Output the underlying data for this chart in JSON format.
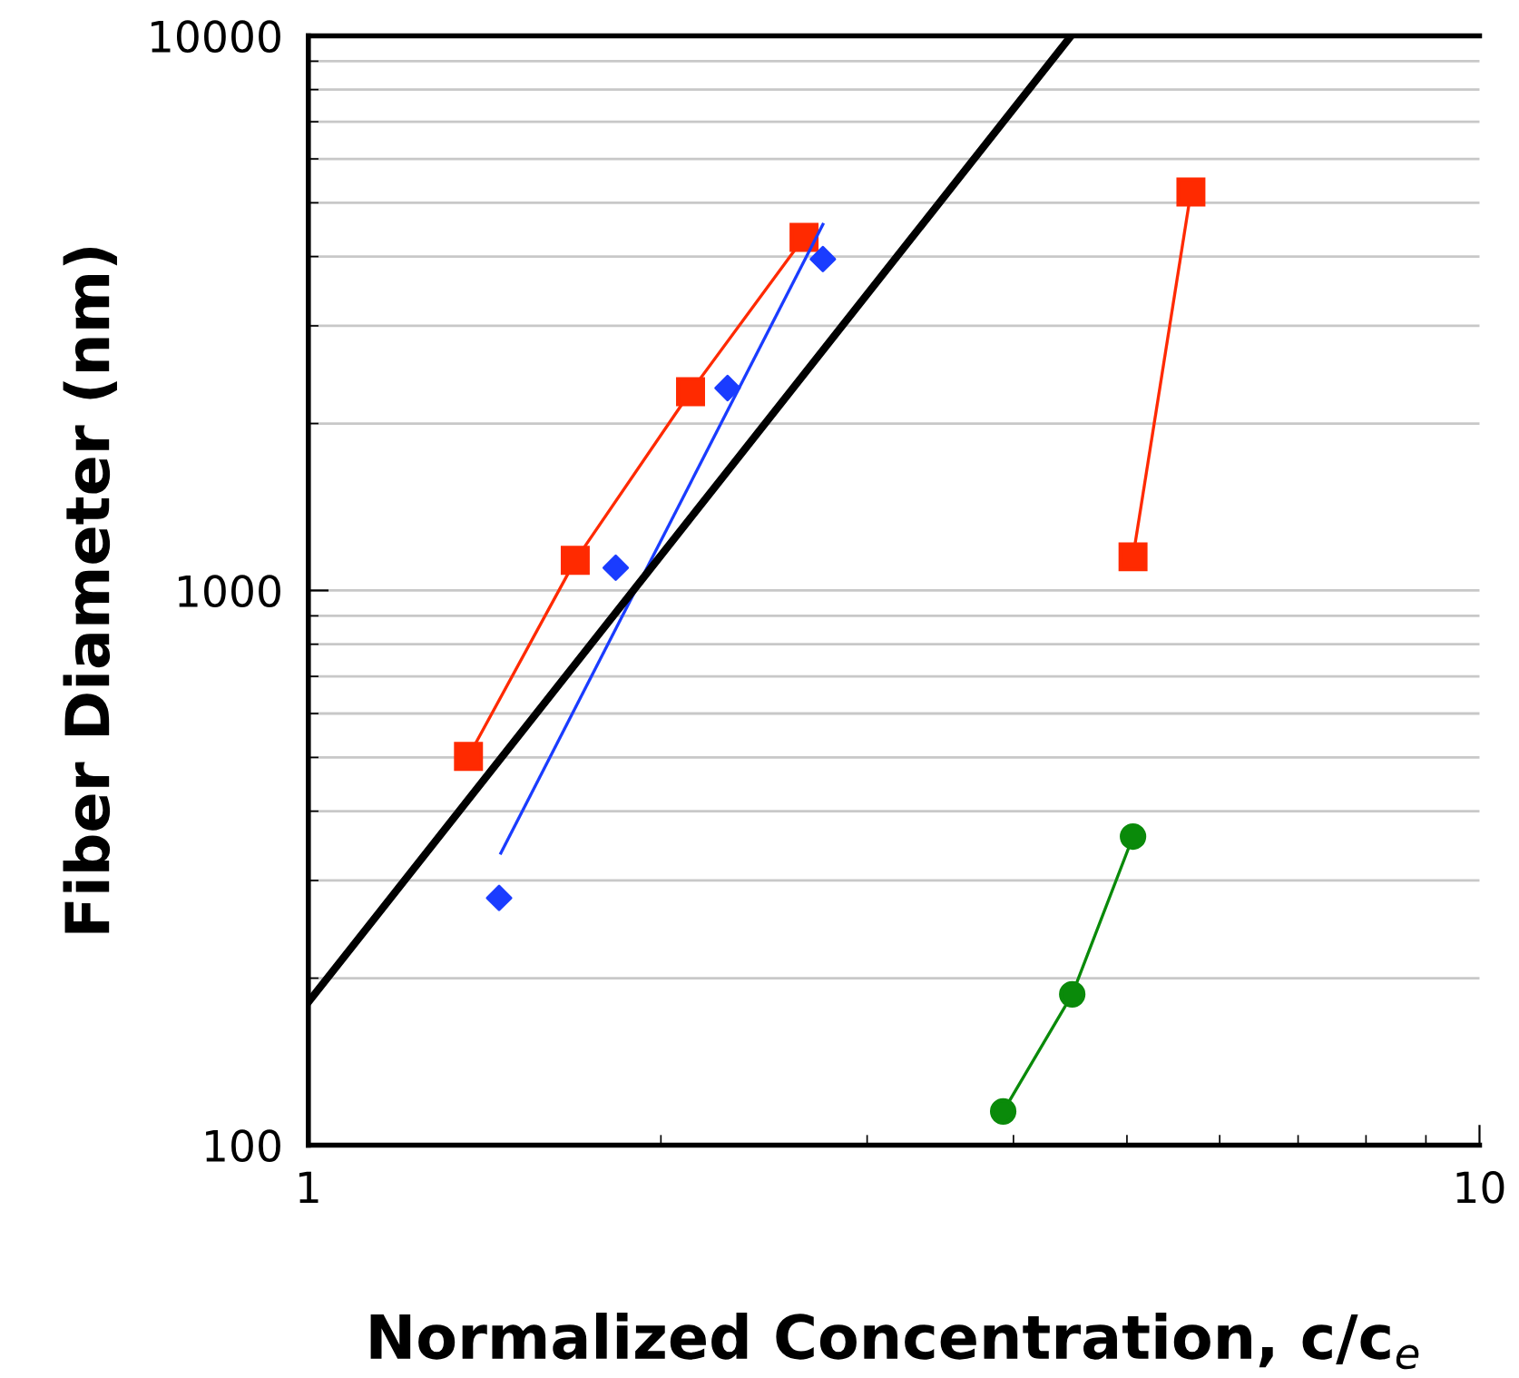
{
  "chart_data": {
    "type": "line",
    "xlabel": "Normalized Concentration, c/c$_{e}$",
    "ylabel": "Fiber Diameter (nm)",
    "log": "xy",
    "xlim": [
      1,
      10
    ],
    "ylim": [
      100,
      10000
    ],
    "xticks": [
      1,
      10
    ],
    "yticks": [
      100,
      1000,
      10000
    ],
    "grid": "y",
    "series": [
      {
        "type": "line",
        "color": "#ff2a00",
        "marker": "square",
        "x": [
          1.37,
          1.69,
          2.12,
          2.65
        ],
        "values": [
          502,
          1133,
          2282,
          4330
        ]
      },
      {
        "type": "scatter",
        "color": "#1a3cff",
        "marker": "diamond",
        "x": [
          1.455,
          1.83,
          2.28,
          2.75
        ],
        "values": [
          279,
          1099,
          2317,
          3958
        ]
      },
      {
        "type": "line",
        "color": "#1a3cff",
        "marker": "none",
        "x": [
          1.46,
          2.75
        ],
        "values": [
          336,
          4570
        ]
      },
      {
        "type": "line",
        "color": "#ff2a00",
        "marker": "square",
        "x": [
          5.06,
          5.67
        ],
        "values": [
          1150,
          5230
        ]
      },
      {
        "type": "line",
        "color": "#0a8a0a",
        "marker": "circle",
        "x": [
          3.92,
          4.49,
          5.06
        ],
        "values": [
          115,
          187,
          360
        ]
      },
      {
        "color": "#000000",
        "marker": "none",
        "x": [
          1,
          4.48
        ],
        "values": [
          181,
          10000
        ]
      }
    ]
  }
}
